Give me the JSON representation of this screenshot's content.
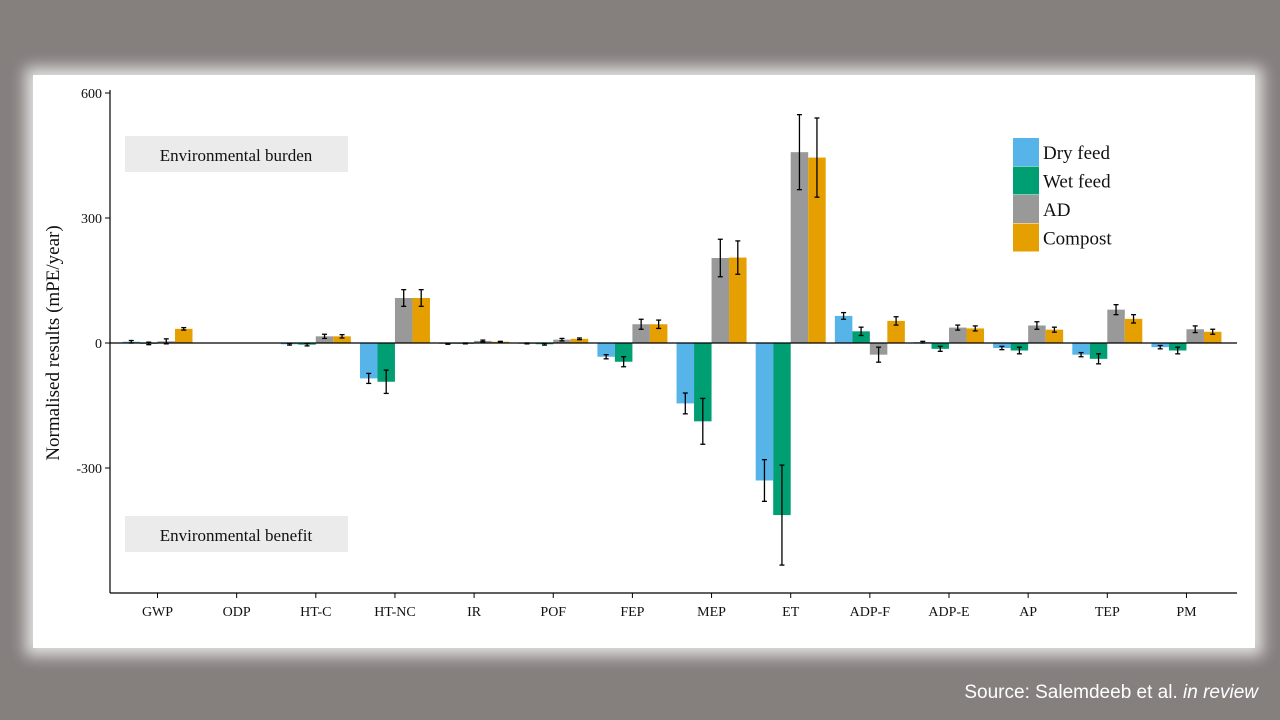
{
  "colors": {
    "Dry feed": "#56b4e9",
    "Wet feed": "#009e73",
    "AD": "#999999",
    "Compost": "#e69f00"
  },
  "source": {
    "prefix": "Source: Salemdeeb et al.",
    "italic": "in review"
  },
  "chart_data": {
    "type": "bar",
    "ylabel": "Normalised results (mPE/year)",
    "xlabel": "",
    "ylim": [
      -600,
      600
    ],
    "yticks": [
      -300,
      0,
      300,
      600
    ],
    "grid": false,
    "legend_position": "top-right",
    "annotations": [
      "Environmental burden",
      "Environmental benefit"
    ],
    "categories": [
      "GWP",
      "ODP",
      "HT-C",
      "HT-NC",
      "IR",
      "POF",
      "FEP",
      "MEP",
      "ET",
      "ADP-F",
      "ADP-E",
      "AP",
      "TEP",
      "PM"
    ],
    "series": [
      {
        "name": "Dry feed",
        "values": [
          3,
          0,
          -3,
          -85,
          -2,
          -1,
          -33,
          -145,
          -330,
          65,
          2,
          -12,
          -28,
          -10
        ],
        "errors": [
          3,
          0,
          2,
          12,
          1,
          1,
          5,
          25,
          50,
          8,
          2,
          4,
          5,
          4
        ]
      },
      {
        "name": "Wet feed",
        "values": [
          -1,
          0,
          -4,
          -93,
          -1,
          -3,
          -45,
          -188,
          -413,
          28,
          -14,
          -18,
          -38,
          -18
        ],
        "errors": [
          3,
          0,
          3,
          28,
          1,
          2,
          12,
          55,
          120,
          10,
          6,
          8,
          12,
          8
        ]
      },
      {
        "name": "AD",
        "values": [
          4,
          0,
          16,
          108,
          5,
          8,
          45,
          204,
          458,
          -28,
          37,
          42,
          80,
          33
        ],
        "errors": [
          6,
          0,
          5,
          20,
          2,
          3,
          12,
          45,
          90,
          18,
          6,
          9,
          12,
          8
        ]
      },
      {
        "name": "Compost",
        "values": [
          34,
          0,
          16,
          108,
          3,
          10,
          45,
          205,
          445,
          53,
          35,
          32,
          58,
          27
        ],
        "errors": [
          3,
          0,
          4,
          20,
          1,
          2,
          10,
          40,
          95,
          10,
          6,
          6,
          10,
          6
        ]
      }
    ]
  }
}
